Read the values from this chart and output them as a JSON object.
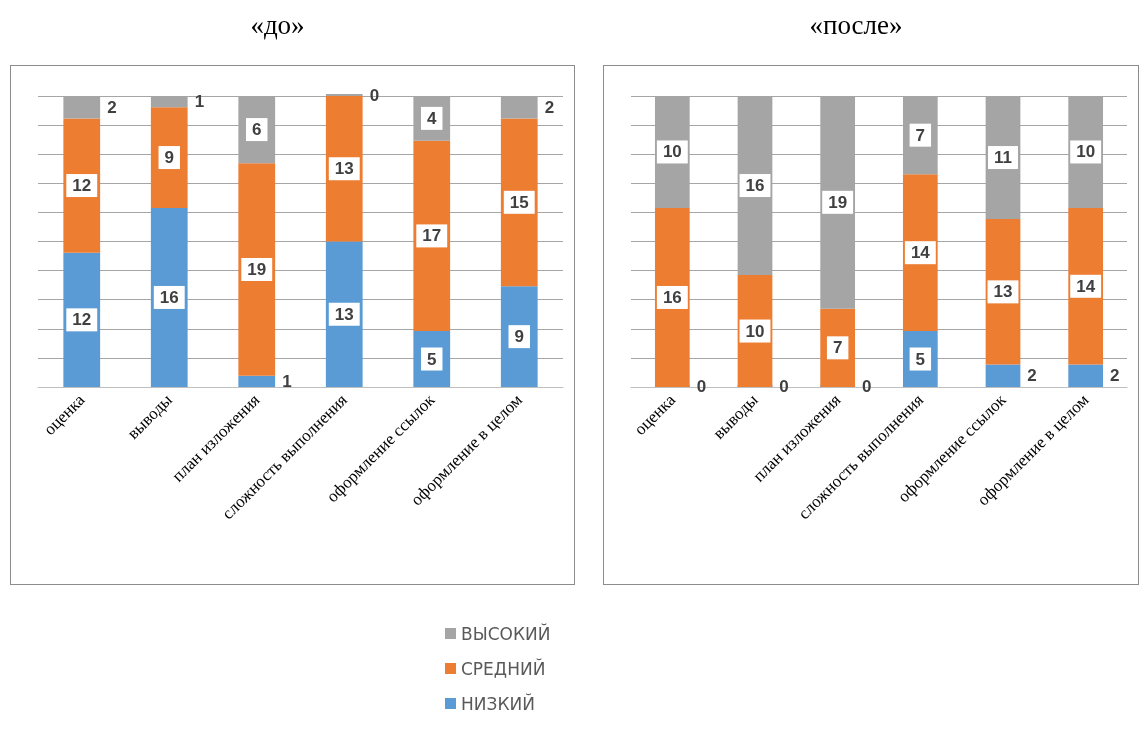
{
  "chart_data": [
    {
      "type": "bar",
      "title": "«до»",
      "stacked": true,
      "data_labels": true,
      "grid": "y",
      "tick_labels": "x",
      "legend": "bottom",
      "categories": [
        "оценка",
        "выводы",
        "план изложения",
        "сложность выполнения",
        "оформление ссылок",
        "оформление в целом"
      ],
      "ylim": [
        0,
        26
      ],
      "yticks": [
        {
          "value": 0,
          "label": null
        },
        {
          "value": 2.6,
          "label": null
        },
        {
          "value": 5.2,
          "label": null
        },
        {
          "value": 7.8,
          "label": null
        },
        {
          "value": 10.4,
          "label": null
        },
        {
          "value": 13,
          "label": null
        },
        {
          "value": 15.6,
          "label": null
        },
        {
          "value": 18.2,
          "label": null
        },
        {
          "value": 20.8,
          "label": null
        },
        {
          "value": 23.4,
          "label": null
        },
        {
          "value": 26,
          "label": null
        }
      ],
      "series": [
        {
          "name": "НИЗКИЙ",
          "color": "#5b9bd5",
          "values": [
            12,
            16,
            1,
            13,
            5,
            9
          ]
        },
        {
          "name": "СРЕДНИЙ",
          "color": "#ed7d31",
          "values": [
            12,
            9,
            19,
            13,
            17,
            15
          ]
        },
        {
          "name": "ВЫСОКИЙ",
          "color": "#a5a5a5",
          "values": [
            2,
            1,
            6,
            0,
            4,
            2
          ]
        }
      ]
    },
    {
      "type": "bar",
      "title": "«после»",
      "stacked": true,
      "data_labels": true,
      "grid": "y",
      "tick_labels": "x",
      "categories": [
        "оценка",
        "выводы",
        "план изложения",
        "сложность выполнения",
        "оформление ссылок",
        "оформление в целом"
      ],
      "ylim": [
        0,
        26
      ],
      "yticks": [
        {
          "value": 0,
          "label": null
        },
        {
          "value": 2.6,
          "label": null
        },
        {
          "value": 5.2,
          "label": null
        },
        {
          "value": 7.8,
          "label": null
        },
        {
          "value": 10.4,
          "label": null
        },
        {
          "value": 13,
          "label": null
        },
        {
          "value": 15.6,
          "label": null
        },
        {
          "value": 18.2,
          "label": null
        },
        {
          "value": 20.8,
          "label": null
        },
        {
          "value": 23.4,
          "label": null
        },
        {
          "value": 26,
          "label": null
        }
      ],
      "series": [
        {
          "color": "#5b9bd5",
          "values": [
            0,
            0,
            0,
            5,
            2,
            2
          ]
        },
        {
          "color": "#ed7d31",
          "values": [
            16,
            10,
            7,
            14,
            13,
            14
          ]
        },
        {
          "color": "#a5a5a5",
          "values": [
            10,
            16,
            19,
            7,
            11,
            10
          ]
        }
      ]
    }
  ]
}
